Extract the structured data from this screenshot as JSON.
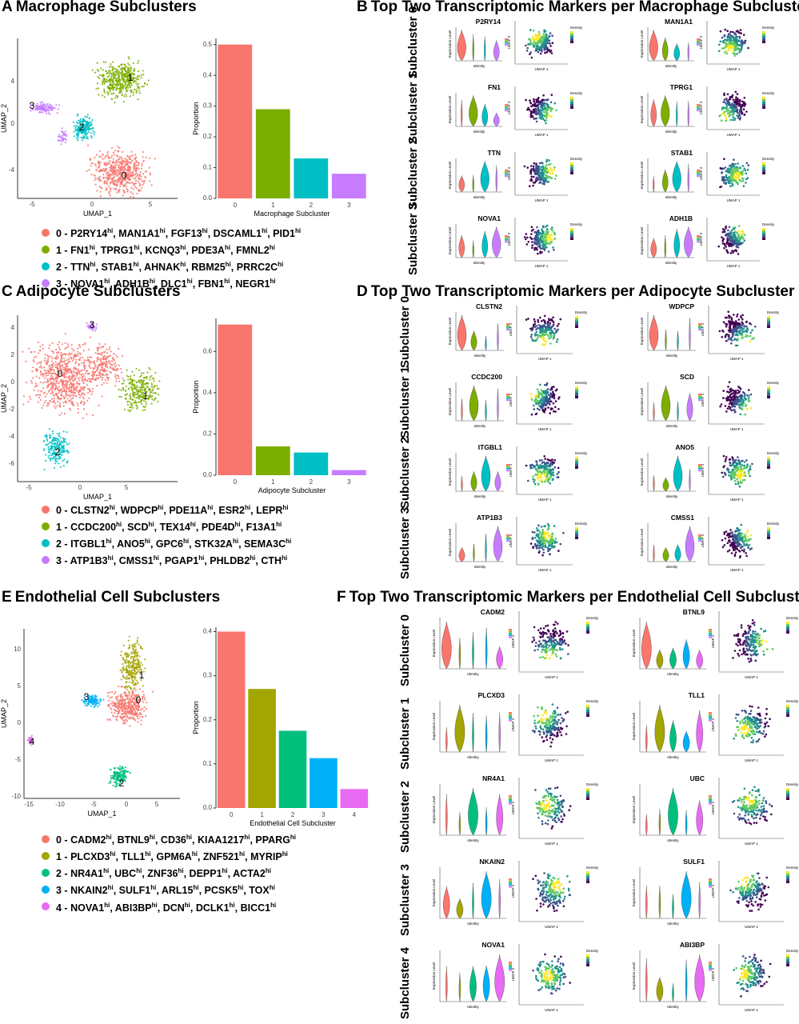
{
  "colors": {
    "4cluster": [
      "#F8766D",
      "#7CAE00",
      "#00BFC4",
      "#C77CFF"
    ],
    "5cluster": [
      "#F8766D",
      "#A3A500",
      "#00BF7D",
      "#00B0F6",
      "#E76BF3"
    ]
  },
  "sections": [
    {
      "title": {
        "letter": "A",
        "text": "Macrophage Subclusters"
      },
      "markers_title": {
        "letter": "B",
        "text": "Top Two Transcriptomic Markers per Macrophage Subcluster"
      },
      "umap": {
        "xlabel": "UMAP_1",
        "ylabel": "UMAP_2",
        "xticks": [
          "-5",
          "0",
          "5"
        ],
        "yticks": [
          "4",
          "0",
          "-4"
        ],
        "cluster_labels": [
          "0",
          "1",
          "2",
          "3"
        ]
      },
      "chart_data": {
        "type": "bar",
        "categories": [
          "0",
          "1",
          "2",
          "3"
        ],
        "values": [
          0.5,
          0.29,
          0.13,
          0.08
        ],
        "xlabel": "Macrophage Subcluster",
        "ylabel": "Proportion",
        "ylim": [
          0,
          0.52
        ],
        "yticks": [
          "0.0",
          "0.1",
          "0.2",
          "0.3",
          "0.4",
          "0.5"
        ]
      },
      "legend": [
        {
          "id": "0",
          "genes": [
            "P2RY14",
            "MAN1A1",
            "FGF13",
            "DSCAML1",
            "PID1"
          ]
        },
        {
          "id": "1",
          "genes": [
            "FN1",
            "TPRG1",
            "KCNQ3",
            "PDE3A",
            "FMNL2"
          ]
        },
        {
          "id": "2",
          "genes": [
            "TTN",
            "STAB1",
            "AHNAK",
            "RBM25",
            "PRRC2C"
          ]
        },
        {
          "id": "3",
          "genes": [
            "NOVA1",
            "ADH1B",
            "DLC1",
            "FBN1",
            "NEGR1"
          ]
        }
      ],
      "subclusters": [
        {
          "label": "Subcluster 0",
          "genes": [
            "P2RY14",
            "MAN1A1"
          ]
        },
        {
          "label": "Subcluster 1",
          "genes": [
            "FN1",
            "TPRG1"
          ]
        },
        {
          "label": "Subcluster 2",
          "genes": [
            "TTN",
            "STAB1"
          ]
        },
        {
          "label": "Subcluster 3",
          "genes": [
            "NOVA1",
            "ADH1B"
          ]
        }
      ]
    },
    {
      "title": {
        "letter": "C",
        "text": "Adipocyte Subclusters"
      },
      "markers_title": {
        "letter": "D",
        "text": "Top Two Transcriptomic Markers per Adipocyte Subcluster"
      },
      "umap": {
        "xlabel": "UMAP_1",
        "ylabel": "UMAP_2",
        "xticks": [
          "-5",
          "0",
          "5"
        ],
        "yticks": [
          "4",
          "2",
          "0",
          "-2",
          "-4",
          "-6"
        ],
        "cluster_labels": [
          "0",
          "1",
          "2",
          "3"
        ]
      },
      "chart_data": {
        "type": "bar",
        "categories": [
          "0",
          "1",
          "2",
          "3"
        ],
        "values": [
          0.73,
          0.14,
          0.11,
          0.025
        ],
        "xlabel": "Adipocyte Subcluster",
        "ylabel": "Proportion",
        "ylim": [
          0,
          0.76
        ],
        "yticks": [
          "0.0",
          "0.2",
          "0.4",
          "0.6"
        ]
      },
      "legend": [
        {
          "id": "0",
          "genes": [
            "CLSTN2",
            "WDPCP",
            "PDE11A",
            "ESR2",
            "LEPR"
          ]
        },
        {
          "id": "1",
          "genes": [
            "CCDC200",
            "SCD",
            "TEX14",
            "PDE4D",
            "F13A1"
          ]
        },
        {
          "id": "2",
          "genes": [
            "ITGBL1",
            "ANO5",
            "GPC6",
            "STK32A",
            "SEMA3C"
          ]
        },
        {
          "id": "3",
          "genes": [
            "ATP1B3",
            "CMSS1",
            "PGAP1",
            "PHLDB2",
            "CTH"
          ]
        }
      ],
      "subclusters": [
        {
          "label": "Subcluster 0",
          "genes": [
            "CLSTN2",
            "WDPCP"
          ]
        },
        {
          "label": "Subcluster 1",
          "genes": [
            "CCDC200",
            "SCD"
          ]
        },
        {
          "label": "Subcluster 2",
          "genes": [
            "ITGBL1",
            "ANO5"
          ]
        },
        {
          "label": "Subcluster 3",
          "genes": [
            "ATP1B3",
            "CMSS1"
          ]
        }
      ]
    },
    {
      "title": {
        "letter": "E",
        "text": "Endothelial Cell Subclusters"
      },
      "markers_title": {
        "letter": "F",
        "text": "Top Two Transcriptomic Markers per Endothelial Cell Subcluster"
      },
      "umap": {
        "xlabel": "UMAP_1",
        "ylabel": "UMAP_2",
        "xticks": [
          "-15",
          "-10",
          "-5",
          "0",
          "5"
        ],
        "yticks": [
          "10",
          "5",
          "0",
          "-5",
          "-10"
        ],
        "cluster_labels": [
          "0",
          "1",
          "2",
          "3",
          "4"
        ]
      },
      "chart_data": {
        "type": "bar",
        "categories": [
          "0",
          "1",
          "2",
          "3",
          "4"
        ],
        "values": [
          0.4,
          0.27,
          0.175,
          0.113,
          0.043
        ],
        "xlabel": "Endothelial Cell Subcluster",
        "ylabel": "Proportion",
        "ylim": [
          0,
          0.41
        ],
        "yticks": [
          "0.0",
          "0.1",
          "0.2",
          "0.3",
          "0.4"
        ]
      },
      "legend": [
        {
          "id": "0",
          "genes": [
            "CADM2",
            "BTNL9",
            "CD36",
            "KIAA1217",
            "PPARG"
          ]
        },
        {
          "id": "1",
          "genes": [
            "PLCXD3",
            "TLL1",
            "GPM6A",
            "ZNF521",
            "MYRIP"
          ]
        },
        {
          "id": "2",
          "genes": [
            "NR4A1",
            "UBC",
            "ZNF36",
            "DEPP1",
            "ACTA2"
          ]
        },
        {
          "id": "3",
          "genes": [
            "NKAIN2",
            "SULF1",
            "ARL15",
            "PCSK5",
            "TOX"
          ]
        },
        {
          "id": "4",
          "genes": [
            "NOVA1",
            "ABI3BP",
            "DCN",
            "DCLK1",
            "BICC1"
          ]
        }
      ],
      "subclusters": [
        {
          "label": "Subcluster 0",
          "genes": [
            "CADM2",
            "BTNL9"
          ]
        },
        {
          "label": "Subcluster 1",
          "genes": [
            "PLCXD3",
            "TLL1"
          ]
        },
        {
          "label": "Subcluster 2",
          "genes": [
            "NR4A1",
            "UBC"
          ]
        },
        {
          "label": "Subcluster 3",
          "genes": [
            "NKAIN2",
            "SULF1"
          ]
        },
        {
          "label": "Subcluster 4",
          "genes": [
            "NOVA1",
            "ABI3BP"
          ]
        }
      ]
    }
  ],
  "mini": {
    "violin_ylabel": "Expression Level",
    "violin_xlabel": "Identity",
    "umap_ylabel": "UMAP 2",
    "umap_xlabel": "UMAP 1",
    "density_label": "Density"
  }
}
